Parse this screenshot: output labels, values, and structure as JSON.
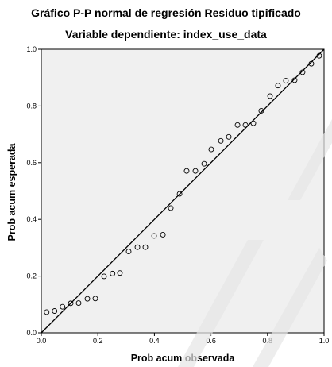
{
  "chart_data": {
    "type": "scatter",
    "title": "Gráfico P-P normal de regresión Residuo tipificado",
    "subtitle": "Variable dependiente: index_use_data",
    "xlabel": "Prob acum observada",
    "ylabel": "Prob acum esperada",
    "xlim": [
      0,
      1
    ],
    "ylim": [
      0,
      1
    ],
    "x_ticks": [
      "0.0",
      "0.2",
      "0.4",
      "0.6",
      "0.8",
      "1.0"
    ],
    "y_ticks": [
      "0.0",
      "0.2",
      "0.4",
      "0.6",
      "0.8",
      "1.0"
    ],
    "grid": false,
    "background_color": "#f0f0f0",
    "reference_line": {
      "from": [
        0,
        0
      ],
      "to": [
        1,
        1
      ]
    },
    "points": [
      {
        "x": 0.019,
        "y": 0.073
      },
      {
        "x": 0.047,
        "y": 0.077
      },
      {
        "x": 0.075,
        "y": 0.092
      },
      {
        "x": 0.104,
        "y": 0.104
      },
      {
        "x": 0.132,
        "y": 0.105
      },
      {
        "x": 0.163,
        "y": 0.12
      },
      {
        "x": 0.191,
        "y": 0.121
      },
      {
        "x": 0.222,
        "y": 0.199
      },
      {
        "x": 0.252,
        "y": 0.209
      },
      {
        "x": 0.278,
        "y": 0.211
      },
      {
        "x": 0.309,
        "y": 0.287
      },
      {
        "x": 0.34,
        "y": 0.302
      },
      {
        "x": 0.368,
        "y": 0.302
      },
      {
        "x": 0.399,
        "y": 0.342
      },
      {
        "x": 0.43,
        "y": 0.346
      },
      {
        "x": 0.458,
        "y": 0.44
      },
      {
        "x": 0.489,
        "y": 0.49
      },
      {
        "x": 0.514,
        "y": 0.571
      },
      {
        "x": 0.545,
        "y": 0.571
      },
      {
        "x": 0.576,
        "y": 0.596
      },
      {
        "x": 0.601,
        "y": 0.647
      },
      {
        "x": 0.635,
        "y": 0.677
      },
      {
        "x": 0.663,
        "y": 0.691
      },
      {
        "x": 0.694,
        "y": 0.733
      },
      {
        "x": 0.722,
        "y": 0.733
      },
      {
        "x": 0.75,
        "y": 0.739
      },
      {
        "x": 0.778,
        "y": 0.783
      },
      {
        "x": 0.809,
        "y": 0.835
      },
      {
        "x": 0.837,
        "y": 0.872
      },
      {
        "x": 0.865,
        "y": 0.889
      },
      {
        "x": 0.896,
        "y": 0.891
      },
      {
        "x": 0.924,
        "y": 0.919
      },
      {
        "x": 0.955,
        "y": 0.949
      },
      {
        "x": 0.983,
        "y": 0.977
      }
    ]
  }
}
